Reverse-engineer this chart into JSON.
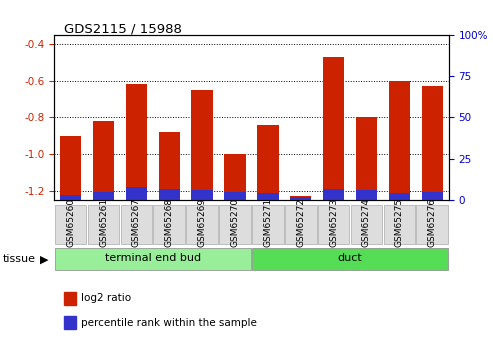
{
  "title": "GDS2115 / 15988",
  "samples": [
    "GSM65260",
    "GSM65261",
    "GSM65267",
    "GSM65268",
    "GSM65269",
    "GSM65270",
    "GSM65271",
    "GSM65272",
    "GSM65273",
    "GSM65274",
    "GSM65275",
    "GSM65276"
  ],
  "log2_ratio": [
    -0.9,
    -0.82,
    -0.62,
    -0.88,
    -0.65,
    -1.0,
    -0.84,
    -1.23,
    -0.47,
    -0.8,
    -0.6,
    -0.63
  ],
  "percentile_rank": [
    3,
    5,
    8,
    7,
    6,
    5,
    4,
    2,
    7,
    6,
    4,
    5
  ],
  "bar_color": "#cc2200",
  "blue_color": "#3333cc",
  "ylim_left": [
    -1.25,
    -0.35
  ],
  "ylim_right": [
    0,
    100
  ],
  "yticks_left": [
    -1.2,
    -1.0,
    -0.8,
    -0.6,
    -0.4
  ],
  "yticks_right": [
    0,
    25,
    50,
    75,
    100
  ],
  "groups": [
    {
      "label": "terminal end bud",
      "indices": [
        0,
        5
      ],
      "color": "#99ee99"
    },
    {
      "label": "duct",
      "indices": [
        6,
        11
      ],
      "color": "#55dd55"
    }
  ],
  "tissue_label": "tissue",
  "legend_items": [
    {
      "color": "#cc2200",
      "label": "log2 ratio"
    },
    {
      "color": "#3333cc",
      "label": "percentile rank within the sample"
    }
  ],
  "bg_color": "#ffffff",
  "grid_color": "#000000",
  "tick_label_color_left": "#cc2200",
  "tick_label_color_right": "#0000cc",
  "bar_width": 0.65
}
